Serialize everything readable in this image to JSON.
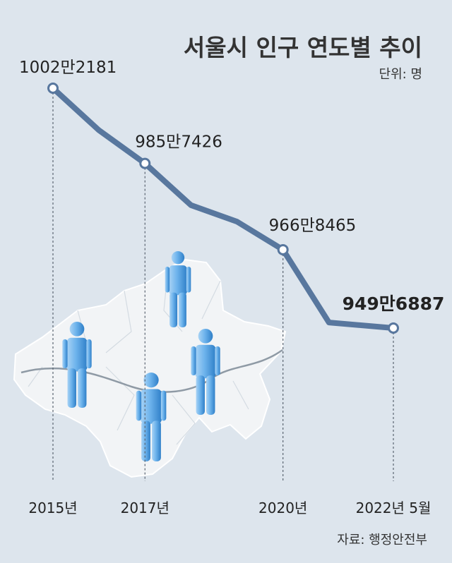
{
  "chart_data": {
    "type": "line",
    "title": "서울시 인구 연도별 추이",
    "unit": "단위: 명",
    "source": "자료: 행정안전부",
    "x_ticks": [
      "2015년",
      "2017년",
      "2020년",
      "2022년 5월"
    ],
    "x": [
      2015,
      2016,
      2017,
      2018,
      2019,
      2020,
      2021,
      2022.4
    ],
    "values": [
      10022181,
      9930000,
      9857426,
      9766000,
      9730000,
      9668465,
      9509000,
      9496887
    ],
    "labels": [
      "1002만2181",
      "",
      "985만7426",
      "",
      "",
      "966만8465",
      "",
      "949만6887"
    ],
    "labeled_points": [
      0,
      2,
      5,
      7
    ],
    "xlim": [
      2015,
      2022.4
    ],
    "ylim": [
      9496887,
      10022181
    ],
    "colors": {
      "line": "#58779e",
      "drop": "#5a6470",
      "map": "#f2f4f6",
      "figure": "#3f8fd6"
    },
    "grid": false,
    "legend": "none"
  }
}
